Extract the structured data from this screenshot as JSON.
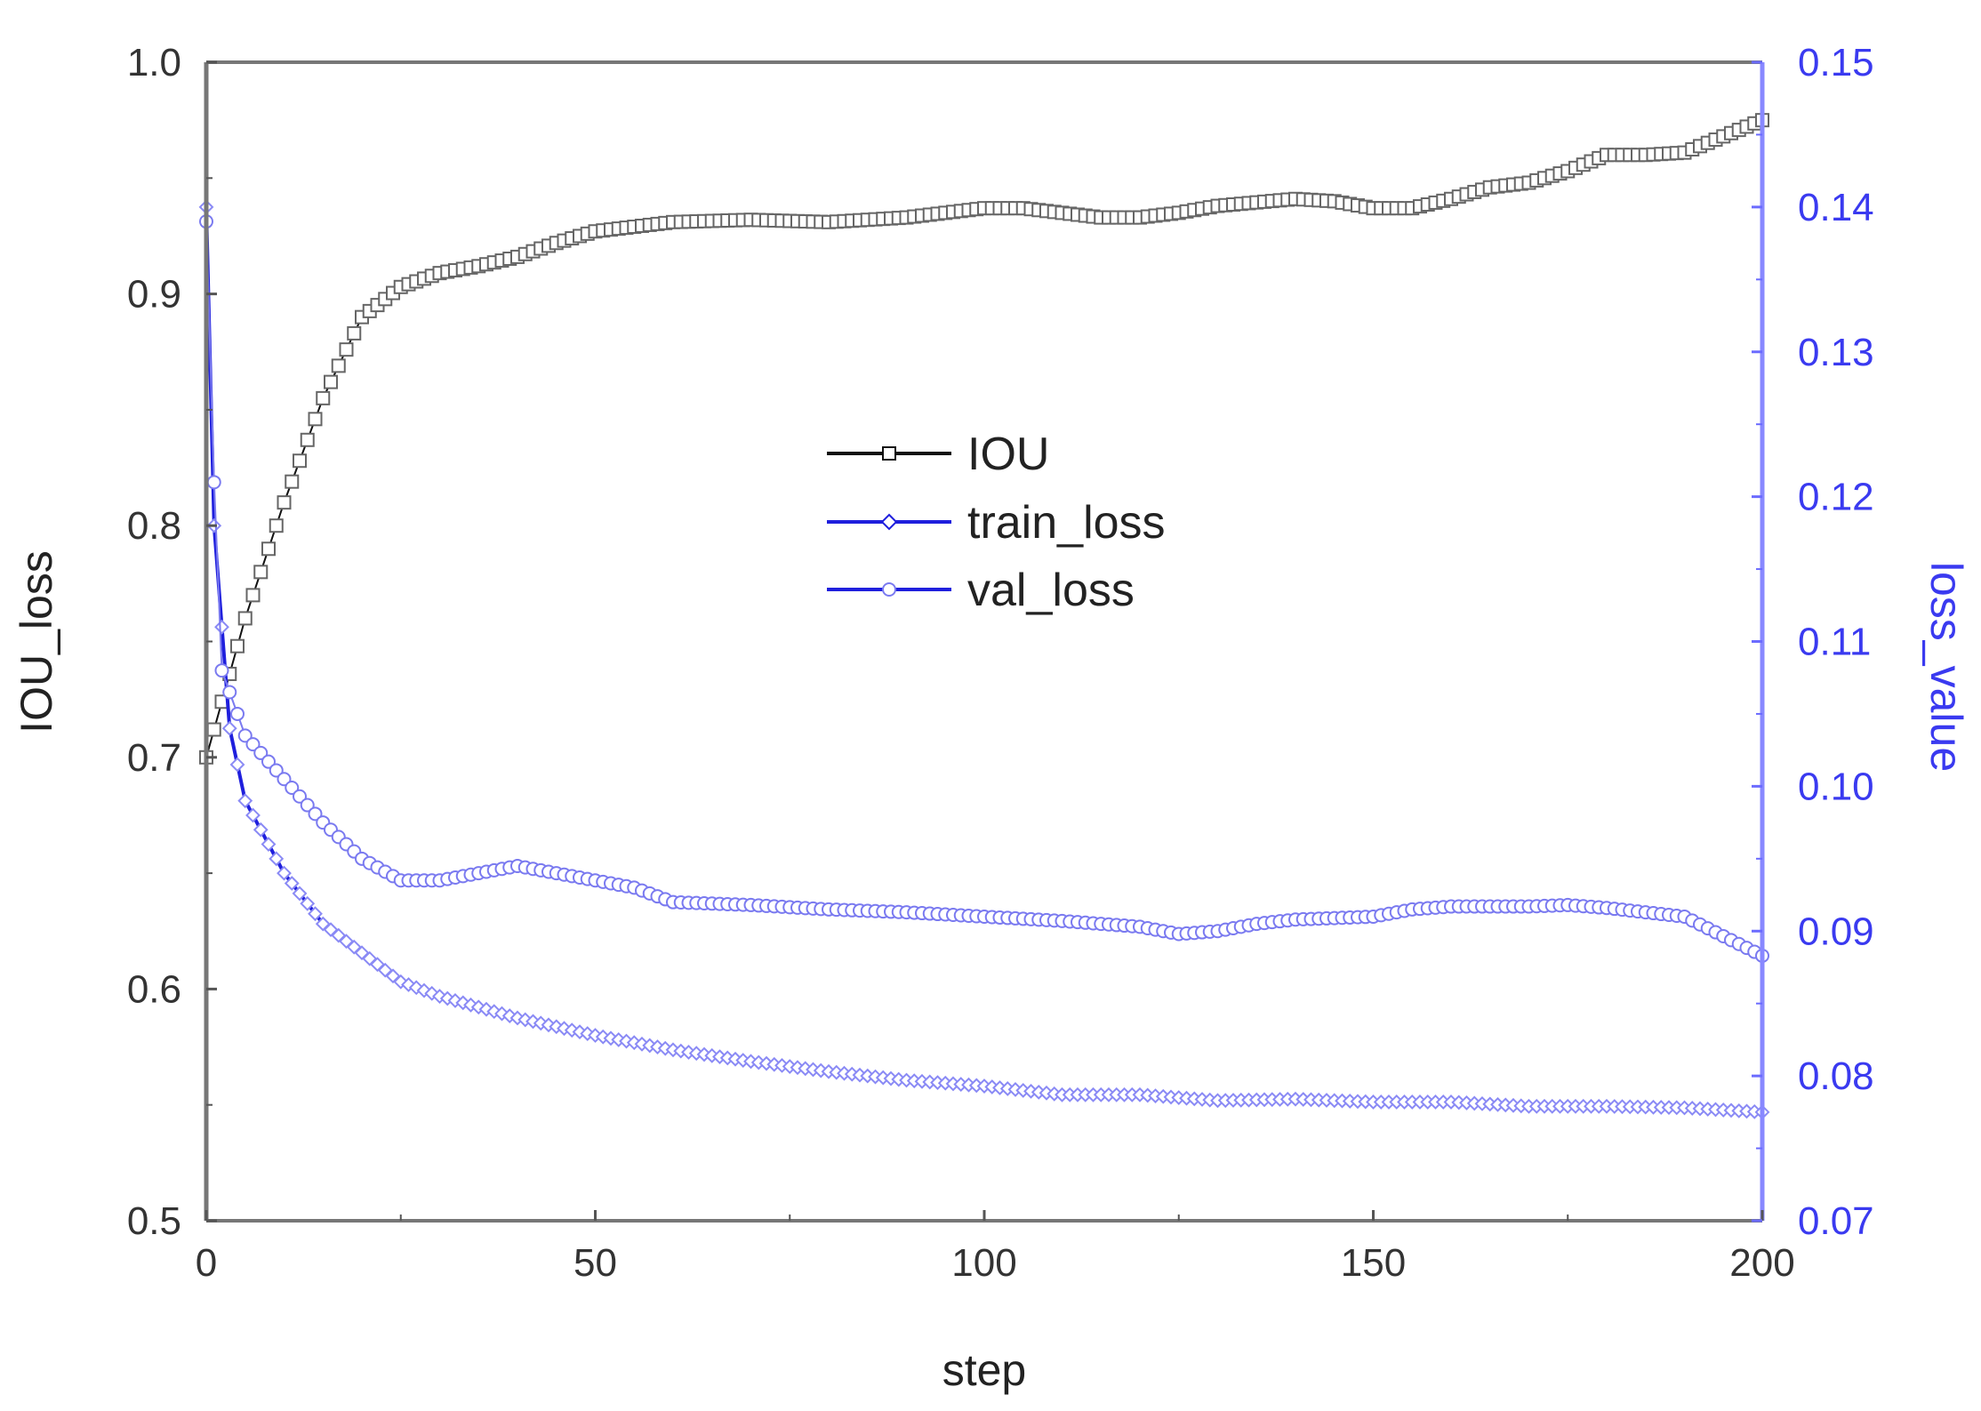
{
  "chart_data": {
    "type": "line",
    "xlabel": "step",
    "ylabel_left": "IOU_loss",
    "ylabel_right": "loss_value",
    "xlim": [
      0,
      200
    ],
    "ylim_left": [
      0.5,
      1.0
    ],
    "ylim_right": [
      0.07,
      0.15
    ],
    "x_ticks": [
      0,
      50,
      100,
      150,
      200
    ],
    "x_tick_labels": [
      "0",
      "50",
      "100",
      "150",
      "200"
    ],
    "y_left_ticks": [
      0.5,
      0.6,
      0.7,
      0.8,
      0.9,
      1.0
    ],
    "y_left_tick_labels": [
      "0.5",
      "0.6",
      "0.7",
      "0.8",
      "0.9",
      "1.0"
    ],
    "y_right_ticks": [
      0.07,
      0.08,
      0.09,
      0.1,
      0.11,
      0.12,
      0.13,
      0.14,
      0.15
    ],
    "y_right_tick_labels": [
      "0.07",
      "0.08",
      "0.09",
      "0.10",
      "0.11",
      "0.12",
      "0.13",
      "0.14",
      "0.15"
    ],
    "legend_position": "center",
    "grid": false,
    "series": [
      {
        "name": "IOU",
        "axis": "left",
        "color": "#111111",
        "marker": "square",
        "points": [
          [
            0,
            0.7
          ],
          [
            5,
            0.76
          ],
          [
            10,
            0.81
          ],
          [
            15,
            0.855
          ],
          [
            20,
            0.89
          ],
          [
            25,
            0.903
          ],
          [
            30,
            0.909
          ],
          [
            35,
            0.912
          ],
          [
            40,
            0.916
          ],
          [
            45,
            0.922
          ],
          [
            50,
            0.927
          ],
          [
            55,
            0.929
          ],
          [
            60,
            0.931
          ],
          [
            70,
            0.932
          ],
          [
            80,
            0.931
          ],
          [
            90,
            0.933
          ],
          [
            100,
            0.937
          ],
          [
            105,
            0.937
          ],
          [
            110,
            0.935
          ],
          [
            115,
            0.933
          ],
          [
            120,
            0.933
          ],
          [
            125,
            0.935
          ],
          [
            130,
            0.938
          ],
          [
            140,
            0.941
          ],
          [
            145,
            0.94
          ],
          [
            150,
            0.937
          ],
          [
            155,
            0.937
          ],
          [
            160,
            0.941
          ],
          [
            165,
            0.946
          ],
          [
            170,
            0.948
          ],
          [
            175,
            0.953
          ],
          [
            180,
            0.96
          ],
          [
            185,
            0.96
          ],
          [
            190,
            0.961
          ],
          [
            195,
            0.968
          ],
          [
            200,
            0.975
          ]
        ]
      },
      {
        "name": "train_loss",
        "axis": "right",
        "color": "#1f1fdd",
        "marker": "diamond",
        "points": [
          [
            0,
            0.14
          ],
          [
            1,
            0.118
          ],
          [
            3,
            0.104
          ],
          [
            5,
            0.099
          ],
          [
            10,
            0.094
          ],
          [
            15,
            0.0905
          ],
          [
            20,
            0.0885
          ],
          [
            25,
            0.0865
          ],
          [
            30,
            0.0855
          ],
          [
            40,
            0.084
          ],
          [
            50,
            0.0828
          ],
          [
            60,
            0.0818
          ],
          [
            70,
            0.081
          ],
          [
            80,
            0.0803
          ],
          [
            90,
            0.0797
          ],
          [
            100,
            0.0793
          ],
          [
            110,
            0.0787
          ],
          [
            120,
            0.0787
          ],
          [
            130,
            0.0783
          ],
          [
            140,
            0.0784
          ],
          [
            150,
            0.0782
          ],
          [
            160,
            0.0782
          ],
          [
            170,
            0.0779
          ],
          [
            180,
            0.0779
          ],
          [
            190,
            0.0778
          ],
          [
            200,
            0.0775
          ]
        ]
      },
      {
        "name": "val_loss",
        "axis": "right",
        "color": "#7a7af0",
        "marker": "circle",
        "points": [
          [
            0,
            0.139
          ],
          [
            1,
            0.121
          ],
          [
            2,
            0.108
          ],
          [
            5,
            0.1035
          ],
          [
            10,
            0.1005
          ],
          [
            15,
            0.0975
          ],
          [
            20,
            0.095
          ],
          [
            25,
            0.0935
          ],
          [
            30,
            0.0935
          ],
          [
            35,
            0.094
          ],
          [
            40,
            0.0945
          ],
          [
            45,
            0.094
          ],
          [
            50,
            0.0935
          ],
          [
            55,
            0.093
          ],
          [
            60,
            0.092
          ],
          [
            70,
            0.0918
          ],
          [
            80,
            0.0915
          ],
          [
            90,
            0.0913
          ],
          [
            100,
            0.091
          ],
          [
            110,
            0.0907
          ],
          [
            120,
            0.0903
          ],
          [
            125,
            0.0898
          ],
          [
            130,
            0.09
          ],
          [
            135,
            0.0905
          ],
          [
            140,
            0.0908
          ],
          [
            150,
            0.091
          ],
          [
            155,
            0.0915
          ],
          [
            160,
            0.0917
          ],
          [
            170,
            0.0917
          ],
          [
            175,
            0.0918
          ],
          [
            180,
            0.0916
          ],
          [
            190,
            0.091
          ],
          [
            200,
            0.0883
          ]
        ]
      }
    ]
  }
}
